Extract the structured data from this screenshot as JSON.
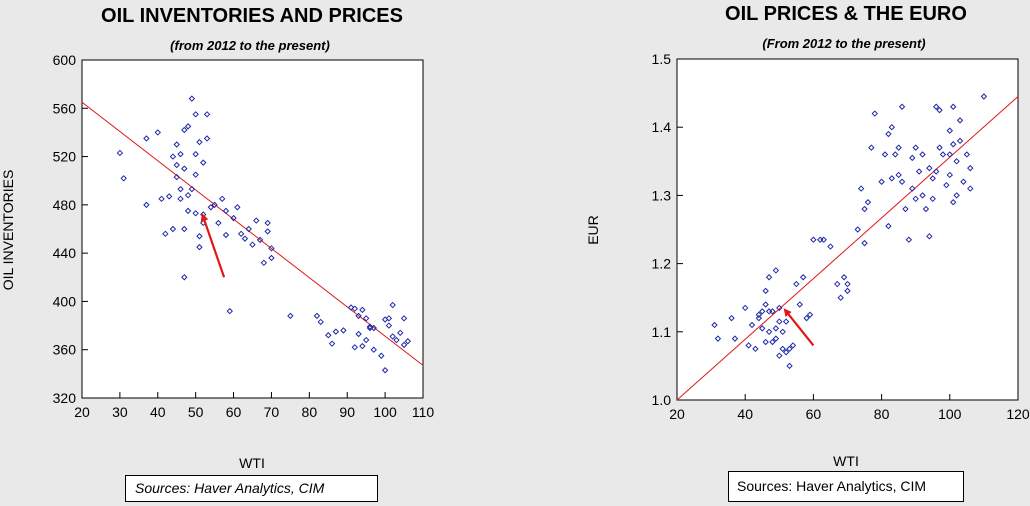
{
  "chart_data": [
    {
      "type": "scatter",
      "title": "OIL INVENTORIES AND PRICES",
      "subtitle": "(from 2012 to the present)",
      "xlabel": "WTI",
      "ylabel": "OIL INVENTORIES",
      "xlim": [
        20,
        110
      ],
      "ylim": [
        320,
        600
      ],
      "x_ticks": [
        20,
        30,
        40,
        50,
        60,
        70,
        80,
        90,
        100,
        110
      ],
      "y_ticks": [
        320,
        360,
        400,
        440,
        480,
        520,
        560,
        600
      ],
      "grid": false,
      "source": "Sources:  Haver Analytics, CIM",
      "colors": {
        "points": "#1f2aa6",
        "fit_line": "#e01818",
        "arrow": "#e01818",
        "plot_bg": "#ffffff"
      },
      "fit_line": {
        "x": [
          20,
          110
        ],
        "y": [
          565,
          347
        ]
      },
      "arrow": {
        "from": [
          57.5,
          420
        ],
        "to": [
          52,
          470
        ]
      },
      "points": [
        [
          30,
          523
        ],
        [
          31,
          502
        ],
        [
          37,
          535
        ],
        [
          37,
          480
        ],
        [
          40,
          540
        ],
        [
          41,
          485
        ],
        [
          42,
          456
        ],
        [
          43,
          487
        ],
        [
          44,
          520
        ],
        [
          44,
          460
        ],
        [
          45,
          530
        ],
        [
          45,
          513
        ],
        [
          45,
          503
        ],
        [
          46,
          522
        ],
        [
          46,
          493
        ],
        [
          46,
          485
        ],
        [
          47,
          542
        ],
        [
          47,
          510
        ],
        [
          47,
          460
        ],
        [
          47,
          420
        ],
        [
          48,
          545
        ],
        [
          48,
          488
        ],
        [
          48,
          475
        ],
        [
          49,
          568
        ],
        [
          49,
          493
        ],
        [
          50,
          522
        ],
        [
          50,
          505
        ],
        [
          50,
          555
        ],
        [
          50,
          473
        ],
        [
          51,
          532
        ],
        [
          51,
          454
        ],
        [
          51,
          445
        ],
        [
          52,
          472
        ],
        [
          52,
          515
        ],
        [
          52,
          465
        ],
        [
          53,
          555
        ],
        [
          53,
          535
        ],
        [
          54,
          478
        ],
        [
          55,
          480
        ],
        [
          56,
          465
        ],
        [
          57,
          485
        ],
        [
          58,
          455
        ],
        [
          58,
          475
        ],
        [
          59,
          392
        ],
        [
          60,
          469
        ],
        [
          61,
          478
        ],
        [
          62,
          456
        ],
        [
          63,
          452
        ],
        [
          64,
          460
        ],
        [
          65,
          447
        ],
        [
          66,
          467
        ],
        [
          67,
          451
        ],
        [
          68,
          432
        ],
        [
          69,
          465
        ],
        [
          69,
          458
        ],
        [
          70,
          436
        ],
        [
          70,
          444
        ],
        [
          75,
          388
        ],
        [
          82,
          388
        ],
        [
          83,
          383
        ],
        [
          85,
          372
        ],
        [
          86,
          365
        ],
        [
          87,
          375
        ],
        [
          89,
          376
        ],
        [
          91,
          395
        ],
        [
          92,
          394
        ],
        [
          92,
          362
        ],
        [
          93,
          388
        ],
        [
          93,
          373
        ],
        [
          94,
          393
        ],
        [
          94,
          363
        ],
        [
          95,
          368
        ],
        [
          95,
          386
        ],
        [
          96,
          378
        ],
        [
          96,
          379
        ],
        [
          97,
          360
        ],
        [
          97,
          378
        ],
        [
          99,
          355
        ],
        [
          100,
          385
        ],
        [
          100,
          343
        ],
        [
          101,
          380
        ],
        [
          101,
          386
        ],
        [
          102,
          371
        ],
        [
          102,
          397
        ],
        [
          103,
          368
        ],
        [
          104,
          374
        ],
        [
          105,
          364
        ],
        [
          105,
          386
        ],
        [
          106,
          367
        ]
      ]
    },
    {
      "type": "scatter",
      "title": "OIL PRICES & THE EURO",
      "subtitle": "(From 2012 to the present)",
      "xlabel": "WTI",
      "ylabel": "EUR",
      "xlim": [
        20,
        120
      ],
      "ylim": [
        1.0,
        1.5
      ],
      "x_ticks": [
        20,
        40,
        60,
        80,
        100,
        120
      ],
      "y_ticks": [
        1.0,
        1.1,
        1.2,
        1.3,
        1.4,
        1.5
      ],
      "grid": false,
      "source": "Sources:  Haver Analytics, CIM",
      "colors": {
        "points": "#1f2aa6",
        "fit_line": "#e01818",
        "arrow": "#e01818",
        "plot_bg": "#ffffff"
      },
      "fit_line": {
        "x": [
          20,
          120
        ],
        "y": [
          1.0,
          1.445
        ]
      },
      "arrow": {
        "from": [
          60,
          1.08
        ],
        "to": [
          52,
          1.13
        ]
      },
      "points": [
        [
          31,
          1.11
        ],
        [
          32,
          1.09
        ],
        [
          36,
          1.12
        ],
        [
          37,
          1.09
        ],
        [
          40,
          1.135
        ],
        [
          41,
          1.08
        ],
        [
          42,
          1.11
        ],
        [
          43,
          1.075
        ],
        [
          44,
          1.12
        ],
        [
          44,
          1.125
        ],
        [
          45,
          1.13
        ],
        [
          45,
          1.105
        ],
        [
          46,
          1.16
        ],
        [
          46,
          1.14
        ],
        [
          46,
          1.085
        ],
        [
          47,
          1.13
        ],
        [
          47,
          1.18
        ],
        [
          47,
          1.1
        ],
        [
          48,
          1.085
        ],
        [
          48,
          1.13
        ],
        [
          49,
          1.09
        ],
        [
          49,
          1.105
        ],
        [
          49,
          1.19
        ],
        [
          50,
          1.115
        ],
        [
          50,
          1.135
        ],
        [
          50,
          1.065
        ],
        [
          51,
          1.1
        ],
        [
          51,
          1.075
        ],
        [
          52,
          1.07
        ],
        [
          52,
          1.115
        ],
        [
          53,
          1.05
        ],
        [
          53,
          1.075
        ],
        [
          54,
          1.08
        ],
        [
          55,
          1.17
        ],
        [
          56,
          1.14
        ],
        [
          57,
          1.18
        ],
        [
          58,
          1.12
        ],
        [
          59,
          1.125
        ],
        [
          60,
          1.235
        ],
        [
          62,
          1.235
        ],
        [
          63,
          1.235
        ],
        [
          65,
          1.225
        ],
        [
          67,
          1.17
        ],
        [
          68,
          1.15
        ],
        [
          69,
          1.18
        ],
        [
          70,
          1.17
        ],
        [
          70,
          1.16
        ],
        [
          73,
          1.25
        ],
        [
          74,
          1.31
        ],
        [
          75,
          1.23
        ],
        [
          75,
          1.28
        ],
        [
          76,
          1.29
        ],
        [
          77,
          1.37
        ],
        [
          78,
          1.42
        ],
        [
          80,
          1.32
        ],
        [
          81,
          1.36
        ],
        [
          82,
          1.39
        ],
        [
          82,
          1.255
        ],
        [
          83,
          1.325
        ],
        [
          83,
          1.4
        ],
        [
          84,
          1.36
        ],
        [
          85,
          1.37
        ],
        [
          85,
          1.33
        ],
        [
          86,
          1.43
        ],
        [
          86,
          1.32
        ],
        [
          87,
          1.28
        ],
        [
          88,
          1.235
        ],
        [
          89,
          1.31
        ],
        [
          89,
          1.355
        ],
        [
          90,
          1.37
        ],
        [
          90,
          1.295
        ],
        [
          91,
          1.335
        ],
        [
          92,
          1.3
        ],
        [
          92,
          1.36
        ],
        [
          93,
          1.28
        ],
        [
          94,
          1.34
        ],
        [
          94,
          1.24
        ],
        [
          95,
          1.295
        ],
        [
          95,
          1.325
        ],
        [
          96,
          1.43
        ],
        [
          96,
          1.335
        ],
        [
          97,
          1.37
        ],
        [
          97,
          1.425
        ],
        [
          98,
          1.36
        ],
        [
          99,
          1.315
        ],
        [
          100,
          1.36
        ],
        [
          100,
          1.395
        ],
        [
          100,
          1.33
        ],
        [
          101,
          1.43
        ],
        [
          101,
          1.375
        ],
        [
          101,
          1.29
        ],
        [
          102,
          1.35
        ],
        [
          102,
          1.3
        ],
        [
          103,
          1.38
        ],
        [
          103,
          1.41
        ],
        [
          104,
          1.32
        ],
        [
          105,
          1.36
        ],
        [
          106,
          1.34
        ],
        [
          106,
          1.31
        ],
        [
          110,
          1.445
        ]
      ]
    }
  ]
}
